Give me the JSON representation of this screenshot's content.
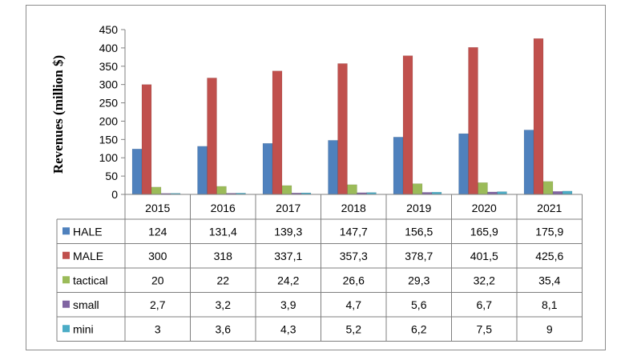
{
  "chart_data": {
    "type": "bar",
    "ylabel": "Revenues (million $)",
    "ylim": [
      0,
      450
    ],
    "yticks": [
      "0",
      "50",
      "100",
      "150",
      "200",
      "250",
      "300",
      "350",
      "400",
      "450"
    ],
    "grid": false,
    "legend": "data-table",
    "categories": [
      "2015",
      "2016",
      "2017",
      "2018",
      "2019",
      "2020",
      "2021"
    ],
    "series": [
      {
        "name": "HALE",
        "color": "#4f81bd",
        "values": [
          124,
          131.4,
          139.3,
          147.7,
          156.5,
          165.9,
          175.9
        ],
        "labels": [
          "124",
          "131,4",
          "139,3",
          "147,7",
          "156,5",
          "165,9",
          "175,9"
        ]
      },
      {
        "name": "MALE",
        "color": "#c0504d",
        "values": [
          300,
          318,
          337.1,
          357.3,
          378.7,
          401.5,
          425.6
        ],
        "labels": [
          "300",
          "318",
          "337,1",
          "357,3",
          "378,7",
          "401,5",
          "425,6"
        ]
      },
      {
        "name": "tactical",
        "color": "#9bbb59",
        "values": [
          20,
          22,
          24.2,
          26.6,
          29.3,
          32.2,
          35.4
        ],
        "labels": [
          "20",
          "22",
          "24,2",
          "26,6",
          "29,3",
          "32,2",
          "35,4"
        ]
      },
      {
        "name": "small",
        "color": "#8064a2",
        "values": [
          2.7,
          3.2,
          3.9,
          4.7,
          5.6,
          6.7,
          8.1
        ],
        "labels": [
          "2,7",
          "3,2",
          "3,9",
          "4,7",
          "5,6",
          "6,7",
          "8,1"
        ]
      },
      {
        "name": "mini",
        "color": "#4bacc6",
        "values": [
          3,
          3.6,
          4.3,
          5.2,
          6.2,
          7.5,
          9
        ],
        "labels": [
          "3",
          "3,6",
          "4,3",
          "5,2",
          "6,2",
          "7,5",
          "9"
        ]
      }
    ]
  }
}
